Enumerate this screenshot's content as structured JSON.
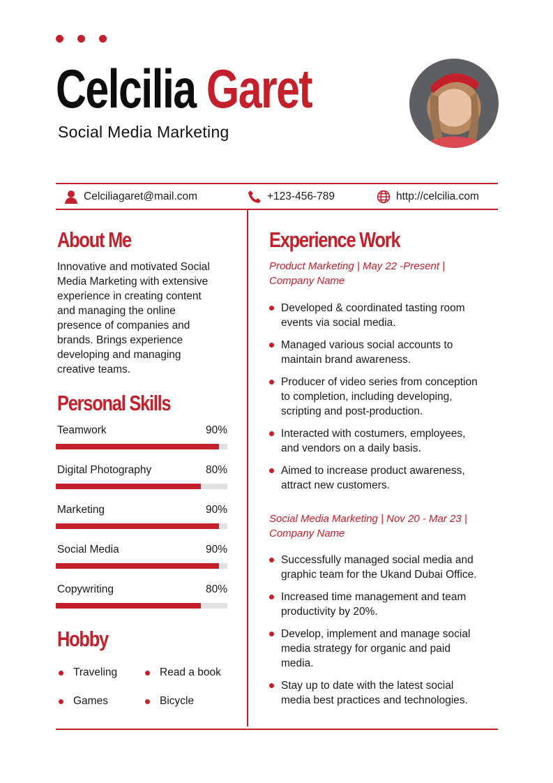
{
  "header": {
    "first_name": "Celcilia",
    "last_name": "Garet",
    "title": "Social Media Marketing"
  },
  "contact": {
    "email": "Celciliagaret@mail.com",
    "phone": "+123-456-789",
    "website": "http://celcilia.com"
  },
  "about": {
    "heading": "About Me",
    "text": "Innovative and motivated Social\nMedia Marketing with extensive\nexperience in creating content\nand managing the online\npresence of companies and\nbrands. Brings experience\ndeveloping and managing\ncreative teams."
  },
  "skills": {
    "heading": "Personal Skills",
    "items": [
      {
        "label": "Teamwork",
        "percent_text": "90%",
        "value": 90
      },
      {
        "label": "Digital Photography",
        "percent_text": "80%",
        "value": 80
      },
      {
        "label": "Marketing",
        "percent_text": "90%",
        "value": 90
      },
      {
        "label": "Social Media",
        "percent_text": "90%",
        "value": 90
      },
      {
        "label": "Copywriting",
        "percent_text": "80%",
        "value": 80
      }
    ]
  },
  "hobby": {
    "heading": "Hobby",
    "items": [
      "Traveling",
      "Read a book",
      "Games",
      "Bicycle"
    ]
  },
  "experience": {
    "heading": "Experience Work",
    "jobs": [
      {
        "title": "Product Marketing | May 22 -Present |\nCompany Name",
        "bullets": [
          "Developed & coordinated tasting room\nevents via social media.",
          "Managed various social accounts to\nmaintain brand awareness.",
          "Producer of video series from conception\nto completion, including developing,\nscripting and post-production.",
          "Interacted with costumers, employees,\nand vendors on a daily basis.",
          "Aimed to increase product awareness,\nattract new customers."
        ]
      },
      {
        "title": "Social Media Marketing | Nov 20 - Mar 23 |\nCompany Name",
        "bullets": [
          "Successfully managed social media and\ngraphic team for the Ukand Dubai Office.",
          "Increased time management and team\nproductivity by 20%.",
          "Develop, implement and manage social\nmedia strategy for organic and paid\nmedia.",
          "Stay up to date with the latest social\nmedia best practices and technologies."
        ]
      }
    ]
  },
  "colors": {
    "accent": "#c4202b",
    "text": "#1a1a1a",
    "bar_track": "#e1e1e1"
  }
}
